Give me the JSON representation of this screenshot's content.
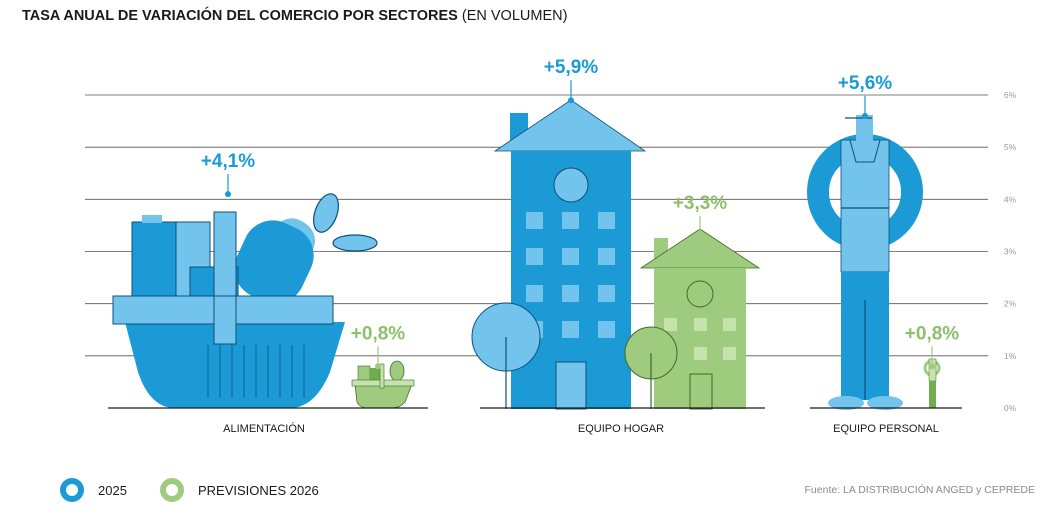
{
  "title": {
    "bold": "TASA ANUAL DE VARIACIÓN DEL COMERCIO POR SECTORES",
    "sub": "(EN VOLUMEN)"
  },
  "colors": {
    "series_2025": "#1b9ad6",
    "series_2026": "#9fcb7f",
    "label_2025": "#1a9ad6",
    "label_2026": "#8cc06a",
    "grid": "#555555"
  },
  "chart_data": {
    "type": "bar",
    "categories": [
      "ALIMENTACIÓN",
      "EQUIPO HOGAR",
      "EQUIPO PERSONAL"
    ],
    "series": [
      {
        "name": "2025",
        "values": [
          4.1,
          5.9,
          5.6
        ],
        "labels": [
          "+4,1%",
          "+5,9%",
          "+5,6%"
        ]
      },
      {
        "name": "PREVISIONES 2026",
        "values": [
          0.8,
          3.3,
          0.8
        ],
        "labels": [
          "+0,8%",
          "+3,3%",
          "+0,8%"
        ]
      }
    ],
    "yticks": [
      "0%",
      "1%",
      "2%",
      "3%",
      "4%",
      "5%",
      "6%"
    ],
    "ylim": [
      0,
      6
    ],
    "grid": true,
    "legend_position": "bottom-left"
  },
  "legend": [
    {
      "label": "2025"
    },
    {
      "label": "PREVISIONES 2026"
    }
  ],
  "source": "Fuente: LA DISTRIBUCIÓN ANGED y CEPREDE"
}
